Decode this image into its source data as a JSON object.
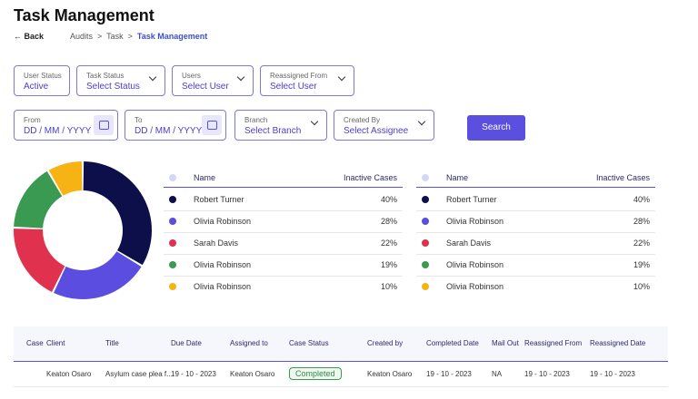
{
  "header": {
    "title": "Task Management",
    "back": "Back",
    "breadcrumbs": [
      "Audits",
      "Task",
      "Task Management"
    ]
  },
  "filters": [
    {
      "label": "User Status",
      "value": "Active"
    },
    {
      "label": "Task Status",
      "value": "Select Status"
    },
    {
      "label": "Users",
      "value": "Select User"
    },
    {
      "label": "Reassigned From",
      "value": "Select User"
    },
    {
      "label": "From",
      "value": "DD / MM / YYYY"
    },
    {
      "label": "To",
      "value": "DD / MM / YYYY"
    },
    {
      "label": "Branch",
      "value": "Select Branch"
    },
    {
      "label": "Created By",
      "value": "Select Assignee"
    }
  ],
  "search": "Search",
  "summary_tables": [
    {
      "columns": [
        "Name",
        "Inactive Cases"
      ],
      "rows": [
        {
          "name": "Robert Turner",
          "share": {
            "value": 40,
            "label": "40%"
          },
          "color": "#0d0f4a"
        },
        {
          "name": "Olivia Robinson",
          "share": {
            "value": 28,
            "label": "28%"
          },
          "color": "#5a4de0"
        },
        {
          "name": "Sarah Davis",
          "share": {
            "value": 22,
            "label": "22%"
          },
          "color": "#e0314f"
        },
        {
          "name": "Olivia Robinson",
          "share": {
            "value": 19,
            "label": "19%"
          },
          "color": "#3a9a52"
        },
        {
          "name": "Olivia Robinson",
          "share": {
            "value": 10,
            "label": "10%"
          },
          "color": "#f7b314"
        }
      ]
    },
    {
      "columns": [
        "Name",
        "Inactive Cases"
      ],
      "rows": [
        {
          "name": "Robert Turner",
          "share": {
            "value": 40,
            "label": "40%"
          },
          "color": "#0d0f4a"
        },
        {
          "name": "Olivia Robinson",
          "share": {
            "value": 28,
            "label": "28%"
          },
          "color": "#5a4de0"
        },
        {
          "name": "Sarah Davis",
          "share": {
            "value": 22,
            "label": "22%"
          },
          "color": "#e0314f"
        },
        {
          "name": "Olivia Robinson",
          "share": {
            "value": 19,
            "label": "19%"
          },
          "color": "#3a9a52"
        },
        {
          "name": "Olivia Robinson",
          "share": {
            "value": 10,
            "label": "10%"
          },
          "color": "#f7b314"
        }
      ]
    }
  ],
  "cases_table": {
    "columns": [
      "Case",
      "Client",
      "Title",
      "Due Date",
      "Assigned to",
      "Case Status",
      "Created by",
      "Completed Date",
      "Mail Out",
      "Reassigned From",
      "Reassigned Date"
    ],
    "rows": [
      {
        "Client": "Keaton Osaro",
        "Title": "Asylum case plea f...",
        "Due Date": "19 - 10 - 2023",
        "Assigned to": "Keaton Osaro",
        "Case Status": "Completed",
        "Created by": "Keaton Osaro",
        "Completed Date": "19 - 10 - 2023",
        "Mail Out": "NA",
        "Reassigned From": "19 - 10 - 2023",
        "Reassigned Date": "19 - 10 - 2023"
      }
    ]
  }
}
